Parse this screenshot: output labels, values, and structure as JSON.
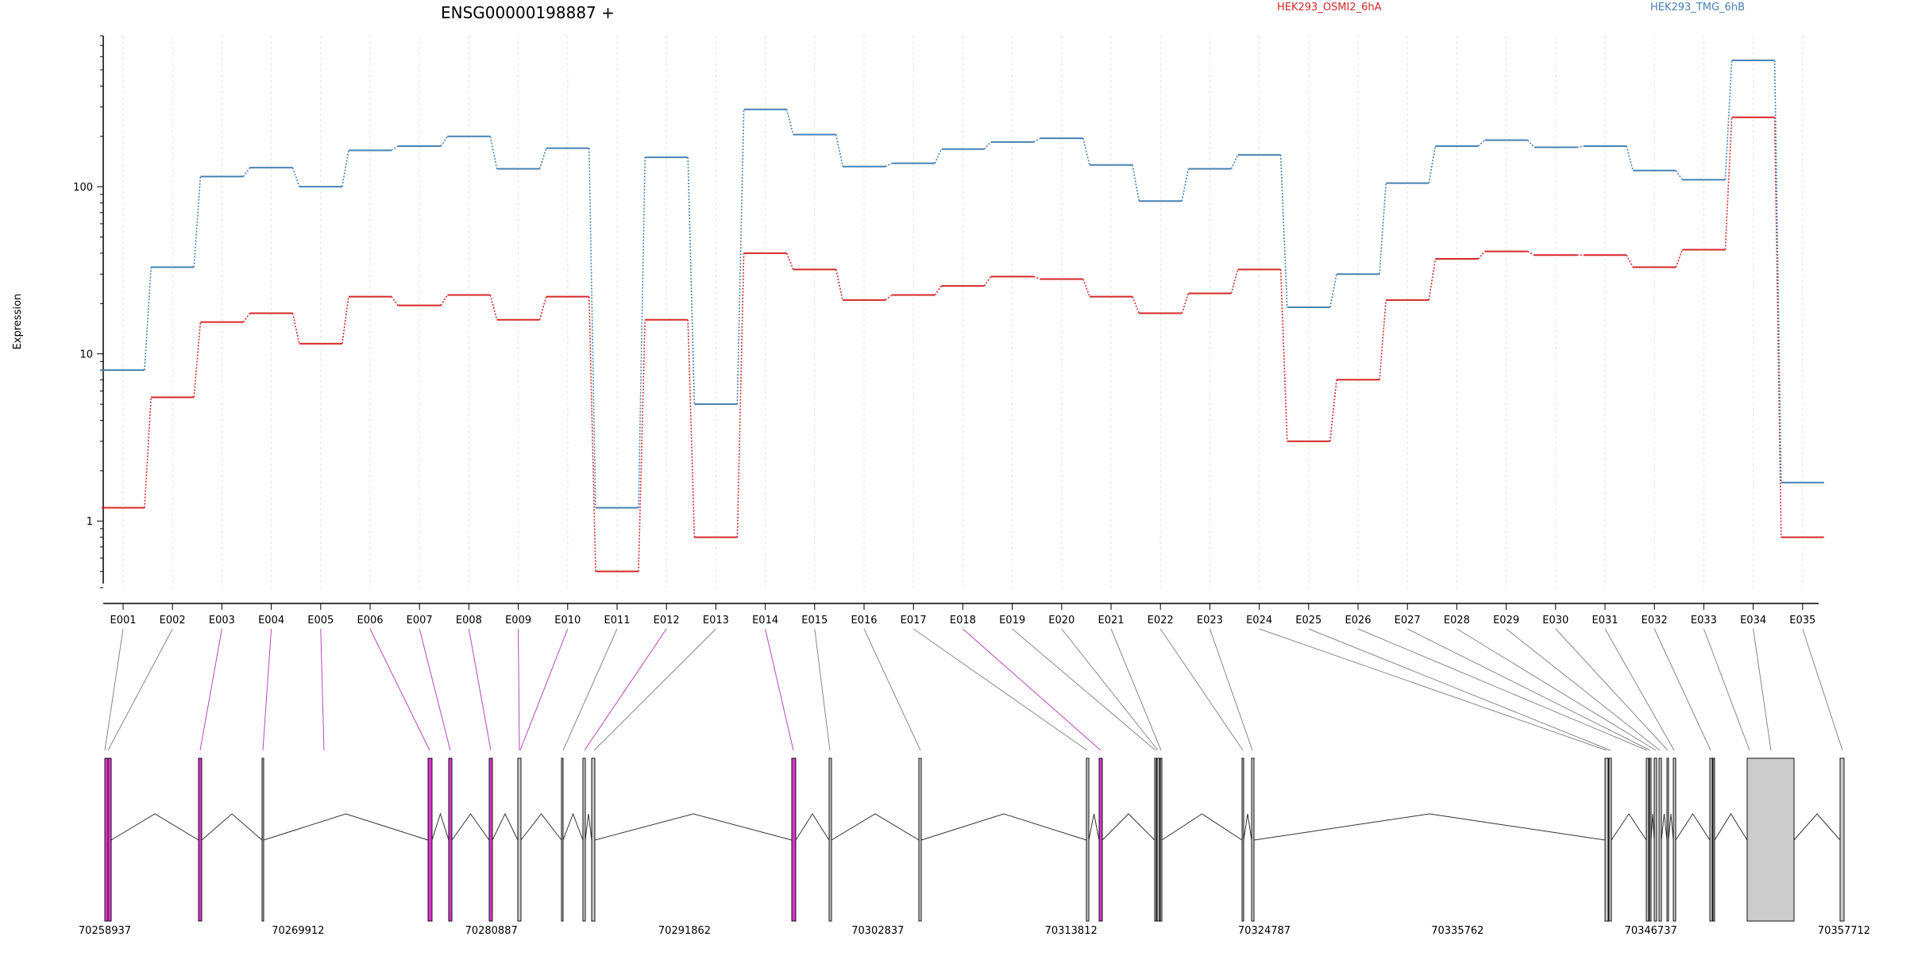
{
  "chart_data": {
    "type": "line",
    "title": "ENSG00000198887 +",
    "ylabel": "Expression",
    "yscale": "log",
    "ylim": [
      0.4,
      800
    ],
    "yticks": [
      "1",
      "10",
      "100"
    ],
    "grid": "vertical",
    "legend_placement": "top-right",
    "categories": [
      "E001",
      "E002",
      "E003",
      "E004",
      "E005",
      "E006",
      "E007",
      "E008",
      "E009",
      "E010",
      "E011",
      "E012",
      "E013",
      "E014",
      "E015",
      "E016",
      "E017",
      "E018",
      "E019",
      "E020",
      "E021",
      "E022",
      "E023",
      "E024",
      "E025",
      "E026",
      "E027",
      "E028",
      "E029",
      "E030",
      "E031",
      "E032",
      "E033",
      "E034",
      "E035"
    ],
    "series": [
      {
        "name": "HEK293_OSMI2_6hA",
        "color": "#d62728",
        "values": [
          1.2,
          5.5,
          15.5,
          17.5,
          11.5,
          22,
          19.5,
          22.5,
          16,
          22,
          0.5,
          16,
          0.8,
          40,
          32,
          21,
          22.5,
          25.5,
          29,
          28,
          22,
          17.5,
          23,
          32,
          3.0,
          7.0,
          21,
          37,
          41,
          39,
          39,
          33,
          42,
          260,
          0.8
        ]
      },
      {
        "name": "HEK293_TMG_6hB",
        "color": "#4682b4",
        "values": [
          8,
          33,
          115,
          130,
          100,
          165,
          175,
          200,
          128,
          170,
          1.2,
          150,
          5.0,
          290,
          205,
          132,
          138,
          168,
          185,
          195,
          135,
          82,
          128,
          155,
          19,
          30,
          105,
          175,
          190,
          172,
          175,
          125,
          110,
          570,
          1.7
        ]
      }
    ],
    "gene_model": {
      "coordinate_ticks": [
        "70258937",
        "70269912",
        "70280887",
        "70291862",
        "70302837",
        "70313812",
        "70324787",
        "70335762",
        "70346737",
        "70357712"
      ],
      "exon_line_colors": [
        "#888888",
        "#888888",
        "#bb44bb",
        "#bb44bb",
        "#bb44bb",
        "#bb44bb",
        "#bb44bb",
        "#bb44bb",
        "#bb44bb",
        "#bb44bb",
        "#888888",
        "#bb44bb",
        "#888888",
        "#bb44bb",
        "#888888",
        "#888888",
        "#888888",
        "#bb44bb",
        "#888888",
        "#888888",
        "#888888",
        "#888888",
        "#888888",
        "#888888",
        "#888888",
        "#888888",
        "#888888",
        "#888888",
        "#888888",
        "#888888",
        "#888888",
        "#888888",
        "#888888",
        "#888888",
        "#888888"
      ],
      "highlight_color": "#dd33cc",
      "plain_color": "#cccccc"
    }
  }
}
